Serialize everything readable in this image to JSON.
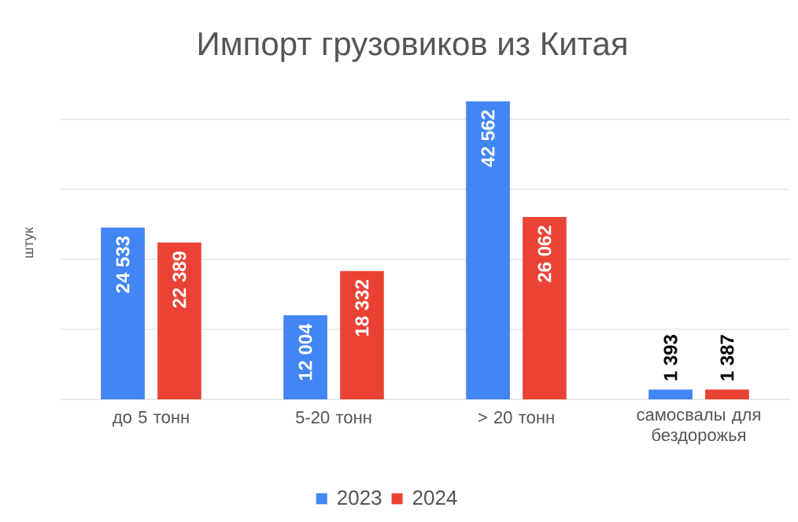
{
  "chart_data": {
    "type": "bar",
    "title": "Импорт грузовиков из Китая",
    "ylabel": "штук",
    "categories": [
      "до 5 тонн",
      "5-20 тонн",
      "> 20 тонн",
      "самосвалы для бездорожья"
    ],
    "series": [
      {
        "name": "2023",
        "color": "#4285f4",
        "values": [
          24533,
          12004,
          42562,
          1393
        ],
        "value_labels": [
          "24 533",
          "12 004",
          "42 562",
          "1 393"
        ]
      },
      {
        "name": "2024",
        "color": "#ea4335",
        "values": [
          22389,
          18332,
          26062,
          1387
        ],
        "value_labels": [
          "22 389",
          "18 332",
          "26 062",
          "1 387"
        ]
      }
    ],
    "grid": "y",
    "legend": "bottom",
    "tick_labels": "x"
  }
}
